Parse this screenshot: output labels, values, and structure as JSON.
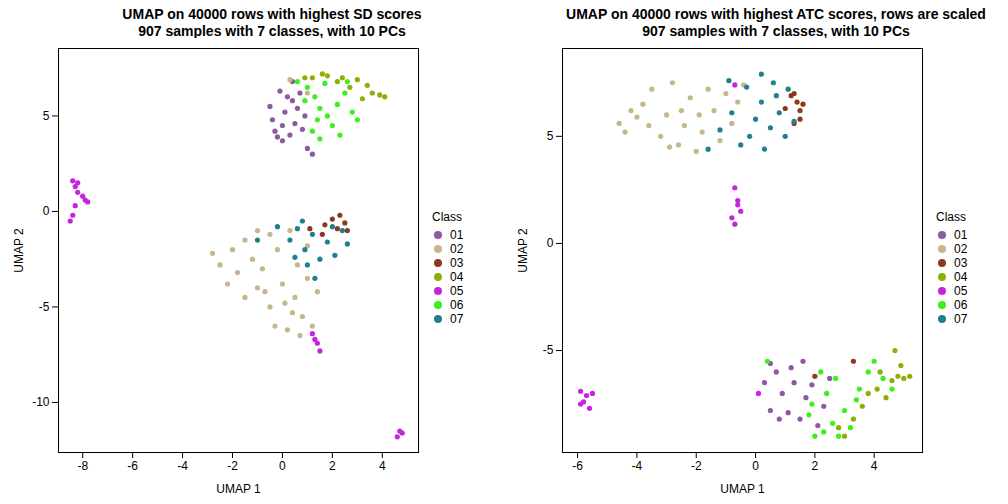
{
  "chart_data": [
    {
      "type": "scatter",
      "title": "UMAP on 40000 rows with highest SD scores",
      "subtitle": "907 samples with 7 classes, with 10 PCs",
      "x_label": "UMAP 1",
      "y_label": "UMAP 2",
      "legend": "right",
      "legend_title": "Class",
      "xlim": [
        -8.97,
        5.45
      ],
      "ylim": [
        -12.62,
        8.53
      ],
      "xticks": [
        -8,
        -6,
        -4,
        -2,
        0,
        2,
        4
      ],
      "yticks": [
        -10,
        -5,
        0,
        5
      ],
      "series": [
        {
          "name": "01",
          "color": "#8B5AA0",
          "x": [
            -0.5,
            -0.4,
            -0.3,
            -0.2,
            0,
            0.1,
            0.2,
            -0.1,
            0.3,
            0.5,
            0.6,
            0.4,
            0.8,
            1.0,
            1.2,
            0.7,
            0.9,
            0,
            0.4
          ],
          "y": [
            5.5,
            4.8,
            4.2,
            3.9,
            4.5,
            5.2,
            6.0,
            6.3,
            4.0,
            4.6,
            5.4,
            5.8,
            4.3,
            3.3,
            3.0,
            6.2,
            5.0,
            3.7,
            6.8
          ]
        },
        {
          "name": "02",
          "color": "#C8B68A",
          "x": [
            -2.8,
            -2.5,
            -2.0,
            -1.8,
            -1.5,
            -1.2,
            -1.0,
            -0.8,
            -0.5,
            -0.5,
            -0.2,
            0,
            0.2,
            0.3,
            0.5,
            0.6,
            0.8,
            1.0,
            1.2,
            -1.5,
            -2.2,
            -0.3,
            0.4,
            1.0,
            -1.0,
            0.1,
            -0.7,
            0.7,
            1.4,
            0.3,
            1.0
          ],
          "y": [
            -2.2,
            -2.8,
            -2.0,
            -3.2,
            -1.5,
            -2.5,
            -4.0,
            -3.0,
            -1.2,
            -5.0,
            -2.0,
            -3.8,
            -6.2,
            -1.0,
            -4.5,
            -2.8,
            -5.5,
            -3.5,
            -6.0,
            -4.5,
            -3.8,
            -6.0,
            -5.3,
            -1.8,
            -1.0,
            -4.8,
            -4.2,
            -6.5,
            -4.2,
            6.9,
            6.2
          ]
        },
        {
          "name": "03",
          "color": "#8B3A1E",
          "x": [
            1.7,
            2.0,
            2.2,
            2.3,
            2.5,
            2.6,
            1.6,
            1.1
          ],
          "y": [
            -0.7,
            -0.4,
            -0.9,
            -0.2,
            -0.6,
            -1.0,
            -1.2,
            -0.9
          ]
        },
        {
          "name": "04",
          "color": "#8FAE08",
          "x": [
            1.2,
            1.8,
            2.4,
            3.0,
            3.4,
            3.6,
            3.9,
            4.1,
            2.7,
            2.2,
            3.2,
            1.6,
            0.9
          ],
          "y": [
            7.0,
            7.1,
            7.0,
            6.9,
            6.6,
            6.2,
            6.1,
            6.0,
            6.5,
            6.8,
            5.9,
            7.2,
            7.0
          ]
        },
        {
          "name": "05",
          "color": "#C724E0",
          "x": [
            -8.4,
            -8.3,
            -8.2,
            -8.0,
            -7.9,
            -8.3,
            -8.4,
            -8.5,
            -8.2,
            -7.8,
            1.2,
            1.4,
            1.5,
            1.3,
            4.7,
            4.6,
            4.8
          ],
          "y": [
            1.6,
            1.3,
            1.0,
            0.8,
            0.6,
            0.3,
            -0.2,
            -0.5,
            1.5,
            0.5,
            -6.4,
            -6.9,
            -7.3,
            -6.7,
            -11.5,
            -11.8,
            -11.6
          ]
        },
        {
          "name": "06",
          "color": "#3EF01B",
          "x": [
            0.6,
            1.0,
            1.3,
            1.5,
            1.8,
            2.0,
            1.2,
            1.5,
            2.2,
            2.5,
            2.8,
            3.0,
            1.7,
            0.9,
            2.3,
            1.4,
            2.6
          ],
          "y": [
            6.8,
            6.5,
            6.0,
            5.4,
            5.0,
            4.5,
            4.2,
            3.8,
            5.6,
            6.2,
            5.2,
            4.8,
            6.7,
            5.8,
            4.0,
            4.8,
            6.8
          ]
        },
        {
          "name": "07",
          "color": "#21808D",
          "x": [
            -0.2,
            0.3,
            0.6,
            0.9,
            1.2,
            1.5,
            1.8,
            2.1,
            2.4,
            0.5,
            1.0,
            2.0,
            1.3,
            -1.0,
            0.8,
            2.6
          ],
          "y": [
            -0.8,
            -1.5,
            -0.9,
            -2.0,
            -1.2,
            -2.5,
            -1.6,
            -2.3,
            -1.0,
            -2.4,
            -2.8,
            -0.8,
            -3.5,
            -1.5,
            -0.5,
            -1.7
          ]
        }
      ]
    },
    {
      "type": "scatter",
      "title": "UMAP on 40000 rows with highest ATC scores, rows are scaled",
      "subtitle": "907 samples with 7 classes, with 10 PCs",
      "x_label": "UMAP 1",
      "y_label": "UMAP 2",
      "legend": "right",
      "legend_title": "Class",
      "xlim": [
        -6.51,
        5.63
      ],
      "ylim": [
        -9.76,
        9.1
      ],
      "xticks": [
        -6,
        -4,
        -2,
        0,
        2,
        4
      ],
      "yticks": [
        -5,
        0,
        5
      ],
      "series": [
        {
          "name": "01",
          "color": "#8B5AA0",
          "x": [
            0.3,
            0.5,
            0.7,
            0.9,
            1.1,
            1.3,
            1.5,
            1.7,
            1.9,
            2.1,
            0.5,
            1.2,
            2.3,
            0.8,
            1.6,
            2.5
          ],
          "y": [
            -6.5,
            -7.8,
            -6.0,
            -7.0,
            -7.9,
            -6.5,
            -8.2,
            -7.2,
            -6.6,
            -8.5,
            -5.6,
            -5.8,
            -7.6,
            -8.2,
            -5.5,
            -6.3
          ]
        },
        {
          "name": "02",
          "color": "#C8B68A",
          "x": [
            -4.6,
            -4.4,
            -4.0,
            -3.8,
            -3.5,
            -3.2,
            -3.0,
            -2.8,
            -2.6,
            -2.4,
            -2.2,
            -2.0,
            -1.8,
            -1.6,
            -1.4,
            -1.2,
            -1.0,
            -0.8,
            -0.6,
            -3.6,
            -4.2,
            -2.5,
            -1.9,
            -0.4,
            -2.9
          ],
          "y": [
            5.6,
            5.2,
            5.9,
            6.5,
            7.2,
            5.0,
            6.0,
            7.5,
            4.6,
            5.5,
            6.8,
            4.3,
            5.2,
            7.2,
            6.2,
            4.8,
            7.0,
            5.6,
            6.6,
            5.5,
            6.2,
            6.2,
            6.0,
            7.4,
            4.5
          ]
        },
        {
          "name": "03",
          "color": "#8B3A1E",
          "x": [
            1.2,
            1.4,
            1.5,
            1.3,
            1.6,
            1.0,
            1.3,
            1.5,
            3.3,
            2.0
          ],
          "y": [
            6.9,
            6.6,
            6.2,
            7.0,
            6.5,
            6.3,
            5.6,
            5.8,
            -5.5,
            -6.2
          ]
        },
        {
          "name": "04",
          "color": "#8FAE08",
          "x": [
            3.0,
            3.3,
            3.8,
            4.1,
            4.4,
            4.6,
            4.8,
            5.0,
            5.2,
            4.7,
            4.9,
            3.6,
            4.2,
            2.8
          ],
          "y": [
            -9.0,
            -8.2,
            -7.0,
            -6.8,
            -7.2,
            -6.4,
            -6.2,
            -6.3,
            -6.2,
            -5.0,
            -5.7,
            -7.6,
            -6.0,
            -8.6
          ]
        },
        {
          "name": "05",
          "color": "#C724E0",
          "x": [
            -0.7,
            -0.6,
            -0.5,
            -0.8,
            -0.7,
            -0.6,
            -5.9,
            -5.7,
            -5.8,
            -5.6,
            -5.9,
            -5.5,
            -0.7,
            0.1
          ],
          "y": [
            2.6,
            2.0,
            1.5,
            1.2,
            0.9,
            1.8,
            -6.9,
            -7.1,
            -7.4,
            -7.7,
            -7.5,
            -7.0,
            7.4,
            -7.0
          ]
        },
        {
          "name": "06",
          "color": "#3EF01B",
          "x": [
            0.4,
            1.8,
            2.0,
            2.3,
            2.6,
            2.8,
            3.0,
            3.2,
            2.4,
            2.7,
            3.5,
            3.8,
            4.0,
            4.3,
            3.4,
            2.2,
            1.9,
            4.6
          ],
          "y": [
            -5.5,
            -8.0,
            -9.0,
            -8.8,
            -8.4,
            -9.0,
            -7.8,
            -8.6,
            -7.0,
            -6.3,
            -6.8,
            -6.0,
            -5.5,
            -6.3,
            -7.3,
            -6.0,
            -7.5,
            -6.8
          ]
        },
        {
          "name": "07",
          "color": "#21808D",
          "x": [
            -1.2,
            -0.8,
            -0.5,
            -0.3,
            0,
            0.2,
            0.3,
            0.5,
            0.6,
            0.8,
            1.0,
            1.1,
            0.2,
            -0.2,
            0.7,
            -1.6,
            1.3,
            -0.9
          ],
          "y": [
            5.3,
            6.1,
            4.6,
            7.3,
            5.8,
            6.6,
            4.4,
            5.4,
            7.5,
            6.1,
            5.0,
            7.2,
            7.9,
            5.0,
            6.9,
            4.4,
            5.7,
            7.6
          ]
        }
      ]
    }
  ]
}
